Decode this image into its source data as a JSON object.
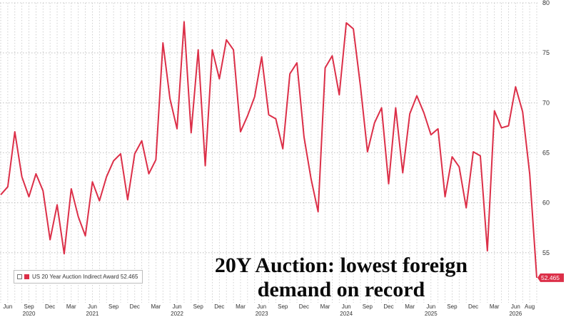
{
  "chart_data": {
    "type": "line",
    "title": "",
    "xlabel": "",
    "ylabel": "",
    "ylim": [
      50,
      80
    ],
    "yticks": [
      55,
      60,
      65,
      70,
      75,
      80
    ],
    "grid": true,
    "series": [
      {
        "name": "US 20 Year Auction Indirect Award",
        "color": "#dc2f48",
        "last_value_label": "52.465",
        "points": [
          [
            "2020-05",
            60.8
          ],
          [
            "2020-06",
            61.6
          ],
          [
            "2020-07",
            67.1
          ],
          [
            "2020-08",
            62.6
          ],
          [
            "2020-09",
            60.6
          ],
          [
            "2020-10",
            62.9
          ],
          [
            "2020-11",
            61.2
          ],
          [
            "2020-12",
            56.3
          ],
          [
            "2021-01",
            59.8
          ],
          [
            "2021-02",
            54.9
          ],
          [
            "2021-03",
            61.4
          ],
          [
            "2021-04",
            58.6
          ],
          [
            "2021-05",
            56.7
          ],
          [
            "2021-06",
            62.1
          ],
          [
            "2021-07",
            60.2
          ],
          [
            "2021-08",
            62.6
          ],
          [
            "2021-09",
            64.2
          ],
          [
            "2021-10",
            64.9
          ],
          [
            "2021-11",
            60.3
          ],
          [
            "2021-12",
            64.9
          ],
          [
            "2022-01",
            66.2
          ],
          [
            "2022-02",
            62.9
          ],
          [
            "2022-03",
            64.3
          ],
          [
            "2022-04",
            76.0
          ],
          [
            "2022-05",
            70.4
          ],
          [
            "2022-06",
            67.4
          ],
          [
            "2022-07",
            78.1
          ],
          [
            "2022-08",
            67.0
          ],
          [
            "2022-09",
            75.3
          ],
          [
            "2022-10",
            63.7
          ],
          [
            "2022-11",
            75.3
          ],
          [
            "2022-12",
            72.4
          ],
          [
            "2023-01",
            76.3
          ],
          [
            "2023-02",
            75.3
          ],
          [
            "2023-03",
            67.1
          ],
          [
            "2023-04",
            68.7
          ],
          [
            "2023-05",
            70.6
          ],
          [
            "2023-06",
            74.6
          ],
          [
            "2023-07",
            68.8
          ],
          [
            "2023-08",
            68.4
          ],
          [
            "2023-09",
            65.4
          ],
          [
            "2023-10",
            72.9
          ],
          [
            "2023-11",
            74.0
          ],
          [
            "2023-12",
            66.6
          ],
          [
            "2024-01",
            62.4
          ],
          [
            "2024-02",
            59.1
          ],
          [
            "2024-03",
            73.5
          ],
          [
            "2024-04",
            74.7
          ],
          [
            "2024-05",
            70.8
          ],
          [
            "2024-06",
            78.0
          ],
          [
            "2024-07",
            77.4
          ],
          [
            "2024-08",
            71.7
          ],
          [
            "2024-09",
            65.1
          ],
          [
            "2024-10",
            68.0
          ],
          [
            "2024-11",
            69.5
          ],
          [
            "2024-12",
            61.9
          ],
          [
            "2025-01",
            69.5
          ],
          [
            "2025-02",
            63.0
          ],
          [
            "2025-03",
            68.9
          ],
          [
            "2025-04",
            70.7
          ],
          [
            "2025-05",
            69.0
          ],
          [
            "2025-06",
            66.8
          ],
          [
            "2025-07",
            67.4
          ],
          [
            "2025-08",
            60.6
          ],
          [
            "2025-09",
            64.6
          ],
          [
            "2025-10",
            63.6
          ],
          [
            "2025-11",
            59.5
          ],
          [
            "2025-12",
            65.1
          ],
          [
            "2026-01",
            64.7
          ],
          [
            "2026-02",
            55.2
          ],
          [
            "2026-03",
            69.2
          ],
          [
            "2026-04",
            67.5
          ],
          [
            "2026-05",
            67.7
          ],
          [
            "2026-06",
            71.6
          ],
          [
            "2026-07",
            69.1
          ],
          [
            "2026-08",
            62.9
          ],
          [
            "2026-09",
            52.5
          ]
        ]
      }
    ],
    "x_axis": {
      "range": [
        "2020-05",
        "2026-09"
      ],
      "ticks": [
        {
          "date": "2020-06",
          "month": "Jun",
          "year": ""
        },
        {
          "date": "2020-09",
          "month": "Sep",
          "year": "2020"
        },
        {
          "date": "2020-12",
          "month": "Dec",
          "year": ""
        },
        {
          "date": "2021-03",
          "month": "Mar",
          "year": ""
        },
        {
          "date": "2021-06",
          "month": "Jun",
          "year": "2021"
        },
        {
          "date": "2021-09",
          "month": "Sep",
          "year": ""
        },
        {
          "date": "2021-12",
          "month": "Dec",
          "year": ""
        },
        {
          "date": "2022-03",
          "month": "Mar",
          "year": ""
        },
        {
          "date": "2022-06",
          "month": "Jun",
          "year": "2022"
        },
        {
          "date": "2022-09",
          "month": "Sep",
          "year": ""
        },
        {
          "date": "2022-12",
          "month": "Dec",
          "year": ""
        },
        {
          "date": "2023-03",
          "month": "Mar",
          "year": ""
        },
        {
          "date": "2023-06",
          "month": "Jun",
          "year": "2023"
        },
        {
          "date": "2023-09",
          "month": "Sep",
          "year": ""
        },
        {
          "date": "2023-12",
          "month": "Dec",
          "year": ""
        },
        {
          "date": "2024-03",
          "month": "Mar",
          "year": ""
        },
        {
          "date": "2024-06",
          "month": "Jun",
          "year": "2024"
        },
        {
          "date": "2024-09",
          "month": "Sep",
          "year": ""
        },
        {
          "date": "2024-12",
          "month": "Dec",
          "year": ""
        },
        {
          "date": "2025-03",
          "month": "Mar",
          "year": ""
        },
        {
          "date": "2025-06",
          "month": "Jun",
          "year": "2025"
        },
        {
          "date": "2025-09",
          "month": "Sep",
          "year": ""
        },
        {
          "date": "2025-12",
          "month": "Dec",
          "year": ""
        },
        {
          "date": "2026-03",
          "month": "Mar",
          "year": ""
        },
        {
          "date": "2026-06",
          "month": "Jun",
          "year": "2026"
        },
        {
          "date": "2026-08",
          "month": "Aug",
          "year": ""
        }
      ]
    },
    "legend": {
      "placement": "bottom-left",
      "text": "US 20 Year Auction Indirect Award 52.465"
    },
    "annotation": {
      "line1": "20Y Auction: lowest foreign",
      "line2": "demand on record"
    }
  }
}
